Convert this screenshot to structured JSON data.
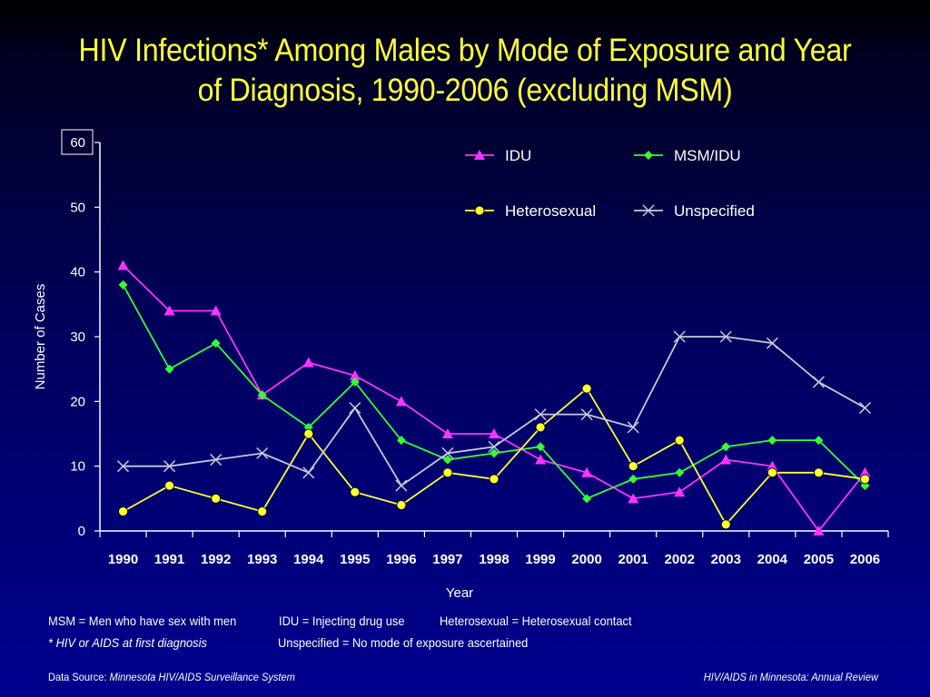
{
  "title_line1": "HIV Infections* Among Males by Mode of Exposure and Year",
  "title_line2": "of Diagnosis, 1990-2006 (excluding MSM)",
  "chart_data": {
    "type": "line",
    "xlabel": "Year",
    "ylabel": "Number of Cases",
    "ylim": [
      0,
      60
    ],
    "yticks": [
      0,
      10,
      20,
      30,
      40,
      50,
      60
    ],
    "x": [
      "1990",
      "1991",
      "1992",
      "1993",
      "1994",
      "1995",
      "1996",
      "1997",
      "1998",
      "1999",
      "2000",
      "2001",
      "2002",
      "2003",
      "2004",
      "2005",
      "2006"
    ],
    "legend_position": "top-right",
    "series": [
      {
        "name": "IDU",
        "color": "#ff33ff",
        "marker": "triangle",
        "values": [
          41,
          34,
          34,
          21,
          26,
          24,
          20,
          15,
          15,
          11,
          9,
          5,
          6,
          11,
          10,
          0,
          9
        ]
      },
      {
        "name": "MSM/IDU",
        "color": "#33ff33",
        "marker": "diamond",
        "values": [
          38,
          25,
          29,
          21,
          16,
          23,
          14,
          11,
          12,
          13,
          5,
          8,
          9,
          13,
          14,
          14,
          7
        ]
      },
      {
        "name": "Heterosexual",
        "color": "#ffff33",
        "marker": "circle",
        "values": [
          3,
          7,
          5,
          3,
          15,
          6,
          4,
          9,
          8,
          16,
          22,
          10,
          14,
          1,
          9,
          9,
          8
        ]
      },
      {
        "name": "Unspecified",
        "color": "#c8c8dc",
        "marker": "x",
        "values": [
          10,
          10,
          11,
          12,
          9,
          19,
          7,
          12,
          13,
          18,
          18,
          16,
          30,
          30,
          29,
          23,
          19
        ]
      }
    ]
  },
  "footnotes": {
    "msm_def": "MSM = Men who have sex with men",
    "idu_def": "IDU = Injecting drug use",
    "het_def": "Heterosexual = Heterosexual contact",
    "star_def": "* HIV or AIDS at first diagnosis",
    "unspec_def": "Unspecified = No mode of exposure ascertained"
  },
  "source_label": "Data Source: ",
  "source_name": "Minnesota HIV/AIDS Surveillance System",
  "report_name": "HIV/AIDS in Minnesota: Annual Review"
}
